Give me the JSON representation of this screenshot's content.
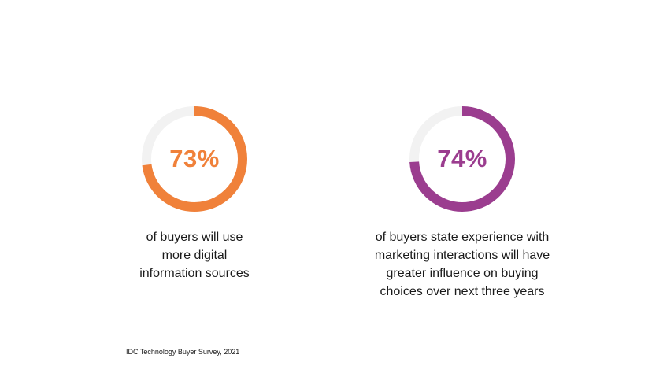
{
  "chart_data": [
    {
      "type": "pie",
      "value": 73,
      "remainder": 27,
      "label": "73%",
      "caption": "of buyers will use more digital information sources",
      "caption_lines": [
        "of buyers will use",
        "more digital",
        "information sources"
      ],
      "color": "#f0813a",
      "track_color": "#f2f2f2"
    },
    {
      "type": "pie",
      "value": 74,
      "remainder": 26,
      "label": "74%",
      "caption": "of buyers state experience with marketing interactions will have greater influence on buying choices over next three years",
      "caption_lines": [
        "of buyers state experience with",
        "marketing interactions will have",
        "greater influence on buying",
        "choices over next three years"
      ],
      "color": "#9b3d8f",
      "track_color": "#f2f2f2"
    }
  ],
  "source": "IDC Technology Buyer Survey, 2021"
}
